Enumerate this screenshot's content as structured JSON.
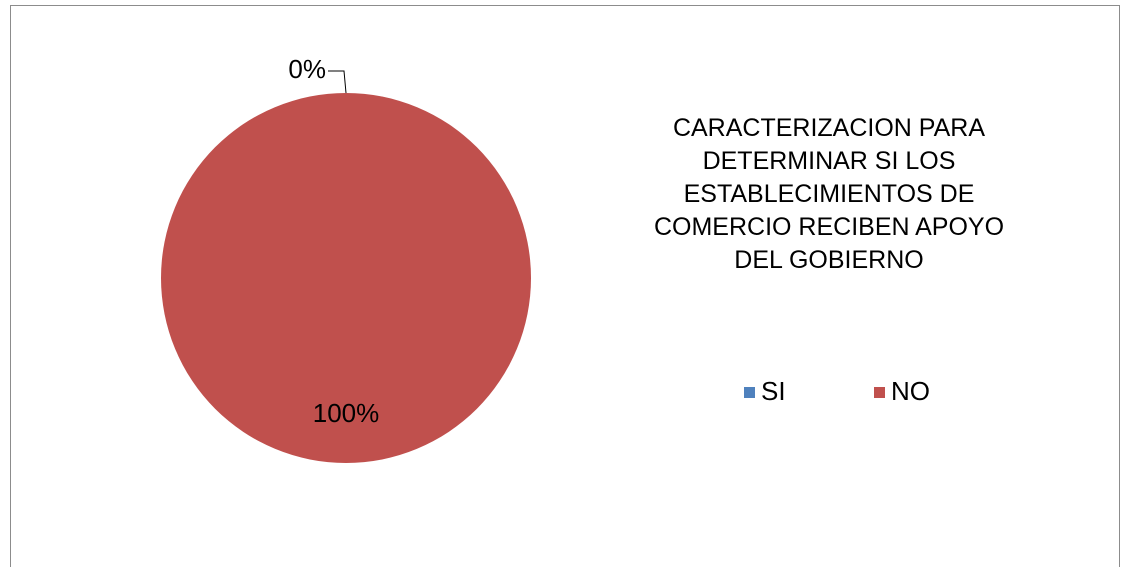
{
  "chart_data": {
    "type": "pie",
    "title": [
      "CARACTERIZACION PARA",
      "DETERMINAR SI LOS",
      "ESTABLECIMIENTOS DE",
      "COMERCIO RECIBEN APOYO",
      "DEL GOBIERNO"
    ],
    "categories": [
      "SI",
      "NO"
    ],
    "values": [
      0,
      100
    ],
    "value_labels": [
      "0%",
      "100%"
    ],
    "colors": [
      "#4f81bd",
      "#c0504d"
    ],
    "legend": "right"
  }
}
